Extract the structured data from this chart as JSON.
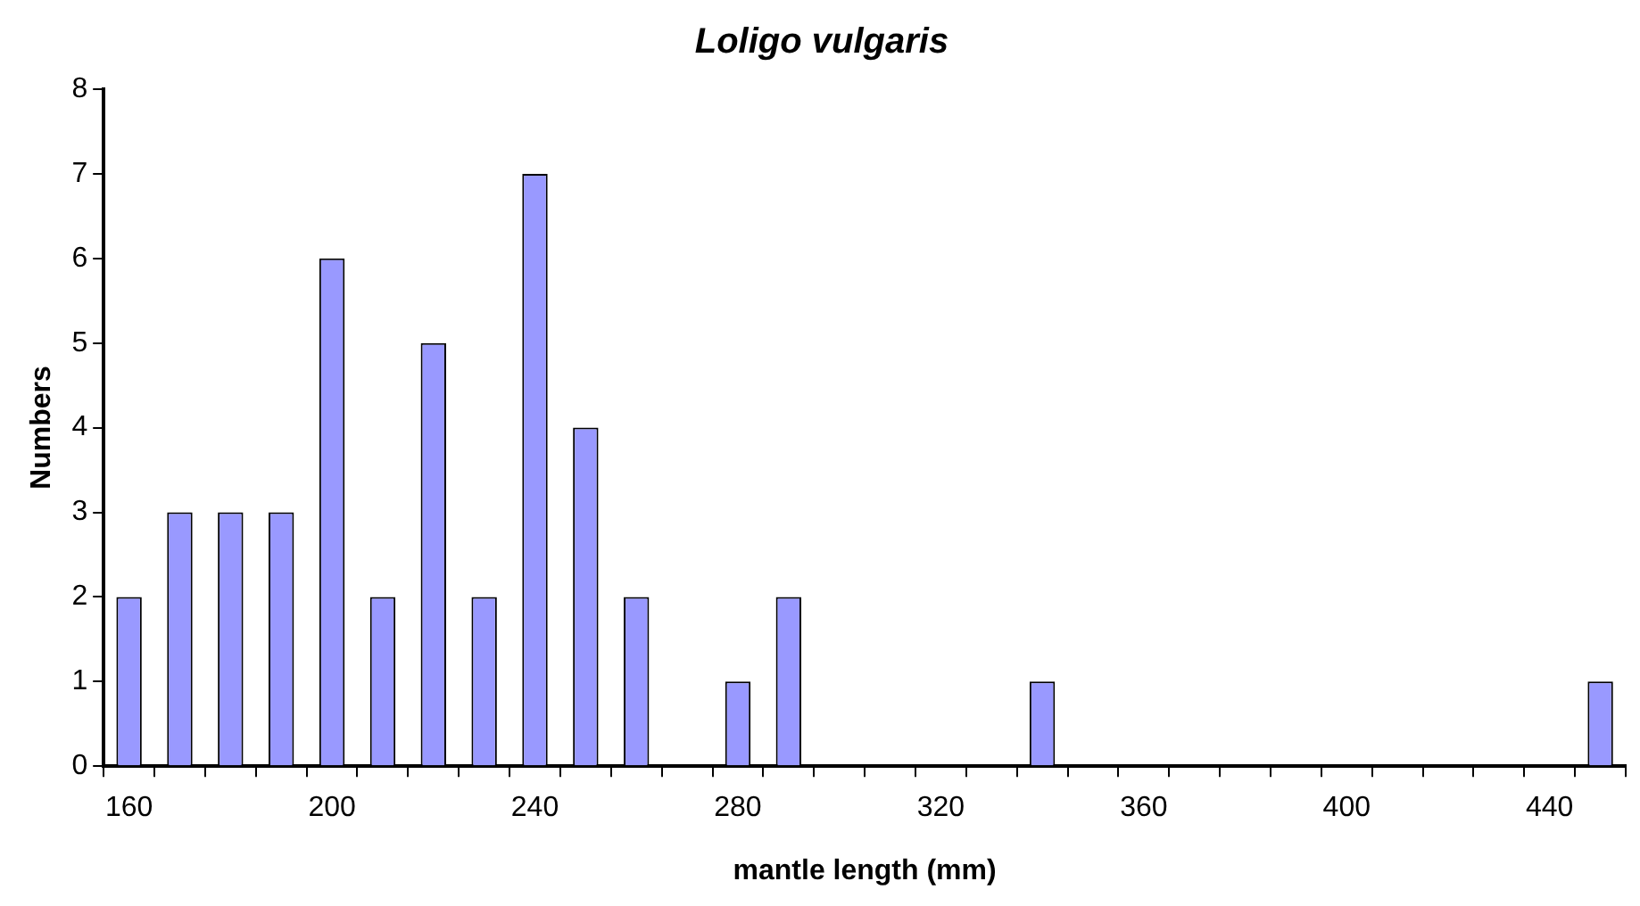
{
  "chart_data": {
    "type": "bar",
    "title": "Loligo vulgaris",
    "xlabel": "mantle length (mm)",
    "ylabel": "Numbers",
    "categories": [
      "160",
      null,
      null,
      null,
      "200",
      null,
      null,
      null,
      "240",
      null,
      null,
      null,
      "280",
      null,
      null,
      null,
      "320",
      null,
      null,
      null,
      "360",
      null,
      null,
      null,
      "400",
      null,
      null,
      null,
      "440",
      null
    ],
    "values": [
      2,
      3,
      3,
      3,
      6,
      2,
      5,
      2,
      7,
      4,
      2,
      0,
      1,
      2,
      0,
      0,
      0,
      0,
      1,
      0,
      0,
      0,
      0,
      0,
      0,
      0,
      0,
      0,
      0,
      1
    ],
    "color": "#9999ff",
    "ylim": [
      0,
      8
    ],
    "yticks": [
      0,
      1,
      2,
      3,
      4,
      5,
      6,
      7,
      8
    ],
    "grid": false,
    "legend": false
  }
}
